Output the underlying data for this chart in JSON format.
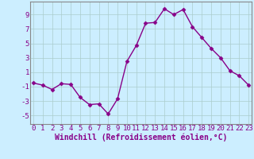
{
  "x": [
    0,
    1,
    2,
    3,
    4,
    5,
    6,
    7,
    8,
    9,
    10,
    11,
    12,
    13,
    14,
    15,
    16,
    17,
    18,
    19,
    20,
    21,
    22,
    23
  ],
  "y": [
    -0.5,
    -0.8,
    -1.4,
    -0.6,
    -0.7,
    -2.5,
    -3.5,
    -3.4,
    -4.8,
    -2.7,
    2.5,
    4.7,
    7.8,
    7.9,
    9.8,
    9.0,
    9.7,
    7.3,
    5.8,
    4.3,
    3.0,
    1.2,
    0.5,
    -0.8
  ],
  "line_color": "#880088",
  "marker": "D",
  "marker_size": 2.5,
  "bg_color": "#cceeff",
  "grid_color": "#aacccc",
  "xlabel": "Windchill (Refroidissement éolien,°C)",
  "xlabel_fontsize": 7,
  "xlabel_color": "#880088",
  "tick_color": "#880088",
  "ytick_labels": [
    "-5",
    "-3",
    "-1",
    "1",
    "3",
    "5",
    "7",
    "9"
  ],
  "ytick_values": [
    -5,
    -3,
    -1,
    1,
    3,
    5,
    7,
    9
  ],
  "xtick_values": [
    0,
    1,
    2,
    3,
    4,
    5,
    6,
    7,
    8,
    9,
    10,
    11,
    12,
    13,
    14,
    15,
    16,
    17,
    18,
    19,
    20,
    21,
    22,
    23
  ],
  "ylim": [
    -6.2,
    10.8
  ],
  "xlim": [
    -0.3,
    23.3
  ],
  "tick_fontsize": 6.5,
  "linewidth": 1.0
}
